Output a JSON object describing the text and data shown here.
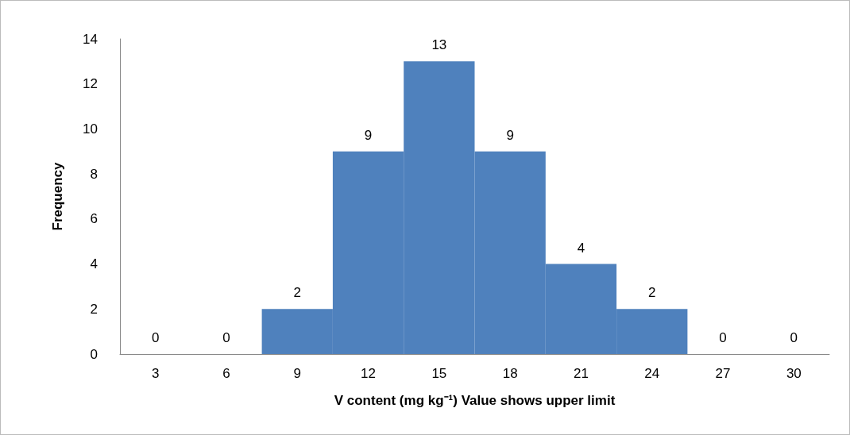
{
  "chart_data": {
    "type": "bar",
    "xlabel": "V content (mg kg⁻¹) Value shows upper limit",
    "ylabel": "Frequency",
    "categories": [
      "3",
      "6",
      "9",
      "12",
      "15",
      "18",
      "21",
      "24",
      "27",
      "30"
    ],
    "values": [
      0,
      0,
      2,
      9,
      13,
      9,
      4,
      2,
      0,
      0
    ],
    "color": "#4f81bd",
    "ylim": [
      0,
      14
    ],
    "yticks": [
      0,
      2,
      4,
      6,
      8,
      10,
      12,
      14
    ],
    "grid": false,
    "data_labels": true
  }
}
